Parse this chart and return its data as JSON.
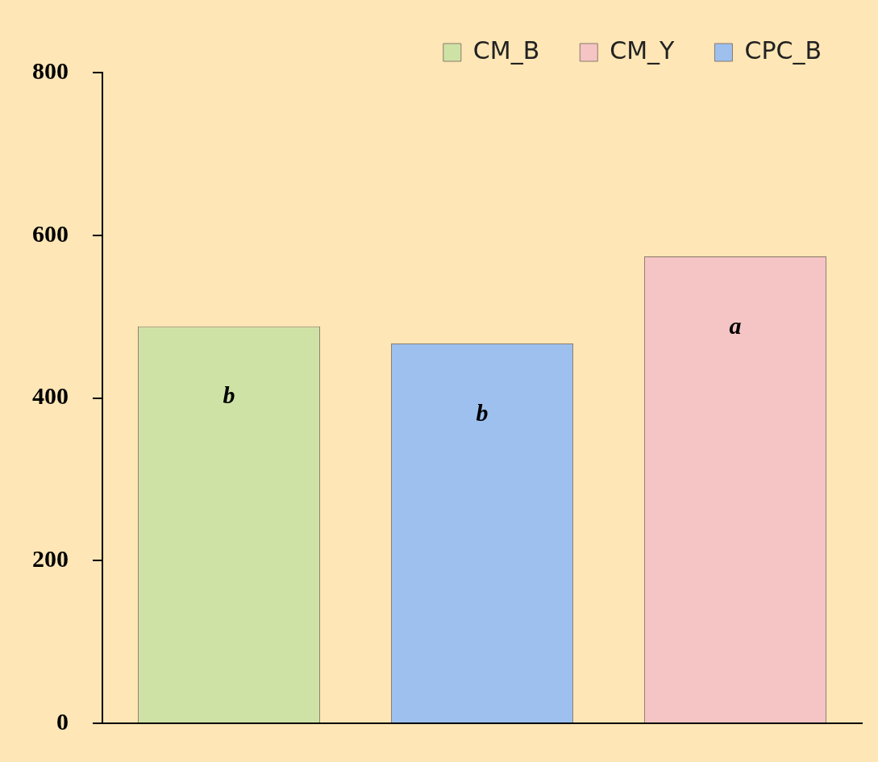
{
  "chart_data": {
    "type": "bar",
    "categories": [
      null,
      null,
      null
    ],
    "series": [
      {
        "name": "CM_B",
        "color": "#cfe2a6",
        "values": [
          488,
          null,
          null
        ]
      },
      {
        "name": "CM_Y",
        "color": "#f5c4c4",
        "values": [
          null,
          null,
          574
        ]
      },
      {
        "name": "CPC_B",
        "color": "#9dc0ef",
        "values": [
          null,
          467,
          null
        ]
      }
    ],
    "ylim": [
      0,
      800
    ],
    "yticks": [
      0,
      200,
      400,
      600,
      800
    ],
    "grid": false,
    "legend": "top right",
    "annotations": [
      "b",
      "b",
      "a"
    ]
  }
}
